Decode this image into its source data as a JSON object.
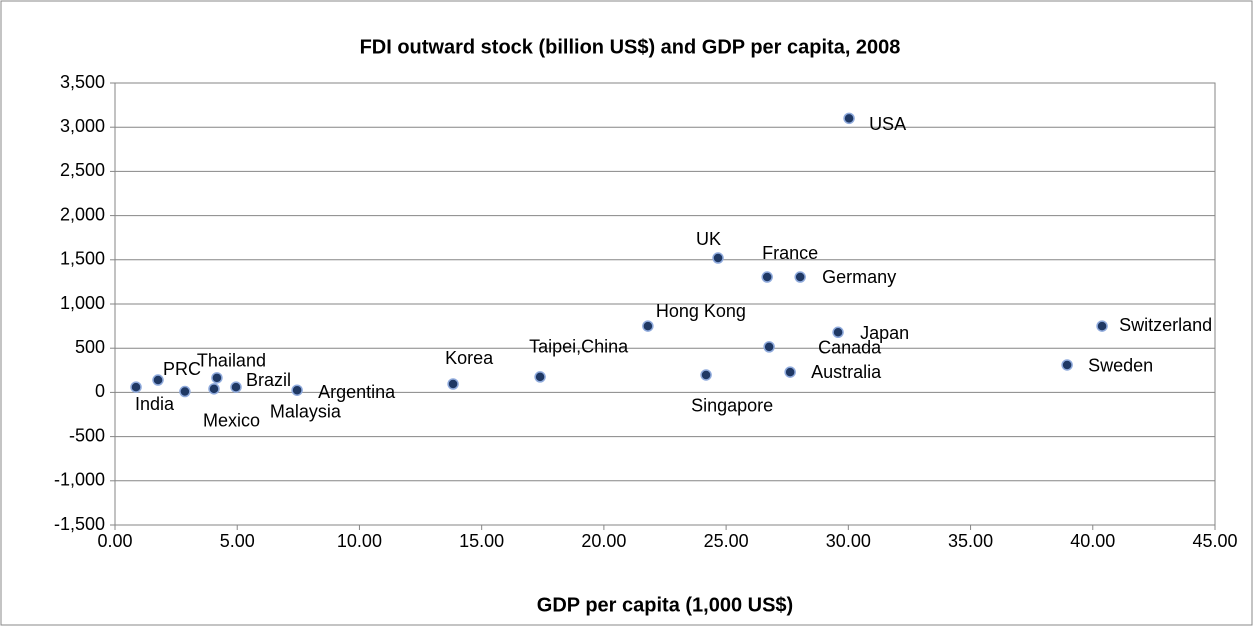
{
  "chart_data": {
    "type": "scatter",
    "title": "FDI outward stock  (billion US$) and GDP per capita, 2008",
    "x_label": "GDP per capita (1,000 US$)",
    "labels": [
      "India",
      "PRC",
      "Malaysia",
      "Mexico",
      "Thailand",
      "Brazil",
      "Argentina",
      "Korea",
      "Taipei,China",
      "Singapore",
      "Hong Kong",
      "UK",
      "France",
      "Germany",
      "Japan",
      "Canada",
      "Australia",
      "USA",
      "Switzerland",
      "Sweden"
    ],
    "x": [
      0.86,
      1.76,
      2.86,
      4.05,
      4.17,
      4.95,
      7.45,
      13.83,
      17.39,
      24.18,
      21.8,
      24.67,
      26.68,
      28.03,
      29.58,
      26.76,
      27.62,
      30.03,
      40.38,
      38.95
    ],
    "values": [
      60,
      140,
      10,
      40,
      165,
      60,
      25,
      95,
      175,
      197,
      750,
      1520,
      1305,
      1305,
      680,
      515,
      230,
      3100,
      750,
      310
    ],
    "color": "#1f3864",
    "xlim": [
      0,
      45
    ],
    "xticks": [
      {
        "value": 0,
        "label": "0.00"
      },
      {
        "value": 5,
        "label": "5.00"
      },
      {
        "value": 10,
        "label": "10.00"
      },
      {
        "value": 15,
        "label": "15.00"
      },
      {
        "value": 20,
        "label": "20.00"
      },
      {
        "value": 25,
        "label": "25.00"
      },
      {
        "value": 30,
        "label": "30.00"
      },
      {
        "value": 35,
        "label": "35.00"
      },
      {
        "value": 40,
        "label": "40.00"
      },
      {
        "value": 45,
        "label": "45.00"
      }
    ],
    "ylim": [
      -1500,
      3500
    ],
    "yticks": [
      {
        "value": -1500,
        "label": "-1,500"
      },
      {
        "value": -1000,
        "label": "-1,000"
      },
      -500,
      0,
      500,
      {
        "value": 1000,
        "label": "1,000"
      },
      {
        "value": 1500,
        "label": "1,500"
      },
      {
        "value": 2000,
        "label": "2,000"
      },
      {
        "value": 2500,
        "label": "2,500"
      },
      {
        "value": 3000,
        "label": "3,000"
      },
      {
        "value": 3500,
        "label": "3,500"
      }
    ],
    "grid": true
  }
}
